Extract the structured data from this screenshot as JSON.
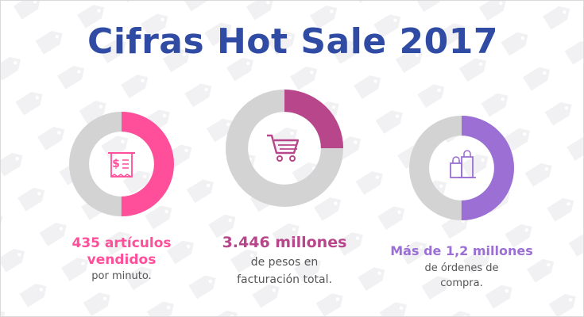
{
  "title": "Cifras Hot Sale 2017",
  "colors": {
    "title": "#2f4ba3",
    "track": "#d3d3d3",
    "pink": "#ff4f9a",
    "magenta": "#b8468b",
    "purple": "#9b6fd4",
    "caption_text": "#555555"
  },
  "chart_data": [
    {
      "type": "pie",
      "variant": "donut",
      "icon": "receipt-dollar-icon",
      "highlight_fraction": 0.5,
      "color": "#ff4f9a",
      "strong_text": "435 artículos vendidos",
      "sub_text": "por minuto."
    },
    {
      "type": "pie",
      "variant": "donut",
      "icon": "shopping-cart-icon",
      "highlight_fraction": 0.25,
      "color": "#b8468b",
      "strong_text": "3.446 millones",
      "sub_text": "de pesos en facturación total."
    },
    {
      "type": "pie",
      "variant": "donut",
      "icon": "shopping-bags-icon",
      "highlight_fraction": 0.5,
      "color": "#9b6fd4",
      "strong_text": "Más de 1,2 millones",
      "sub_text": "de órdenes de compra."
    }
  ]
}
